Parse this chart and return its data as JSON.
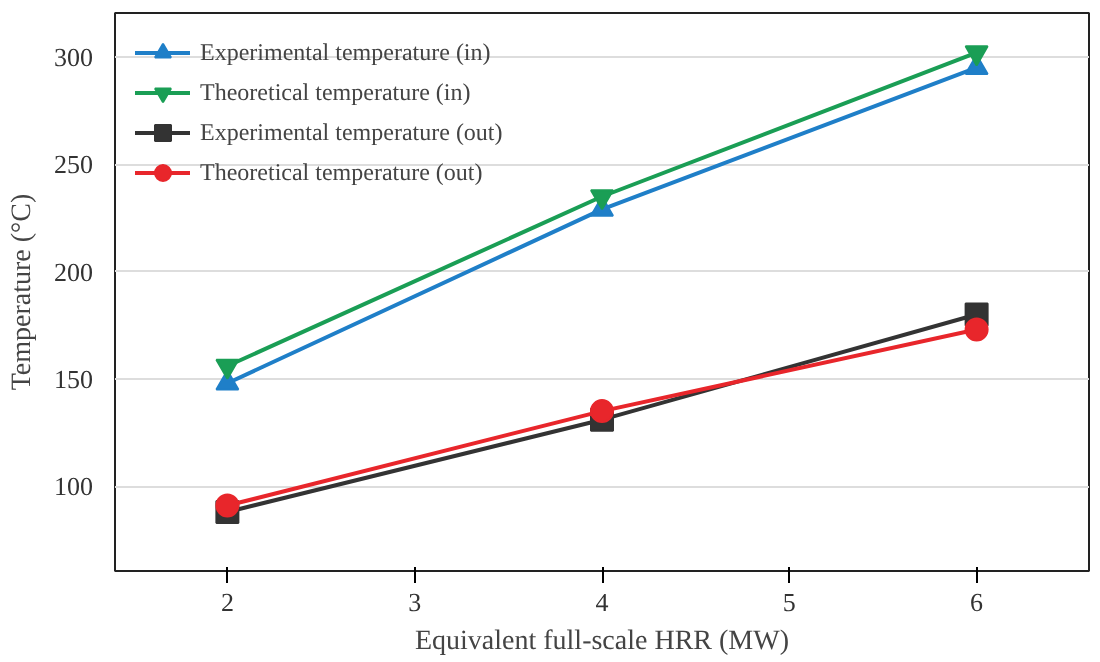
{
  "chart_data": {
    "type": "line",
    "xlabel": "Equivalent full-scale HRR (MW)",
    "ylabel": "Temperature (°C)",
    "x": [
      2,
      4,
      6
    ],
    "series": [
      {
        "name": "Experimental temperature (in)",
        "color": "#1f7fc8",
        "marker": "triangle",
        "values": [
          148,
          229,
          295
        ]
      },
      {
        "name": "Theoretical temperature (in)",
        "color": "#1a9e55",
        "marker": "triangle",
        "values": [
          156,
          235,
          302
        ]
      },
      {
        "name": "Experimental temperature (out)",
        "color": "#333333",
        "marker": "square",
        "values": [
          88,
          131,
          180
        ]
      },
      {
        "name": "Theoretical temperature (out)",
        "color": "#e8262b",
        "marker": "circle",
        "values": [
          91,
          135,
          173
        ]
      }
    ],
    "xlim": [
      1.4,
      6.6
    ],
    "ylim": [
      60.5,
      320.5
    ],
    "xticks": [
      2,
      3,
      4,
      5,
      6
    ],
    "yticks": [
      100,
      150,
      200,
      250,
      300
    ],
    "grid": "y",
    "legend": "top left",
    "line_style": "solid"
  }
}
